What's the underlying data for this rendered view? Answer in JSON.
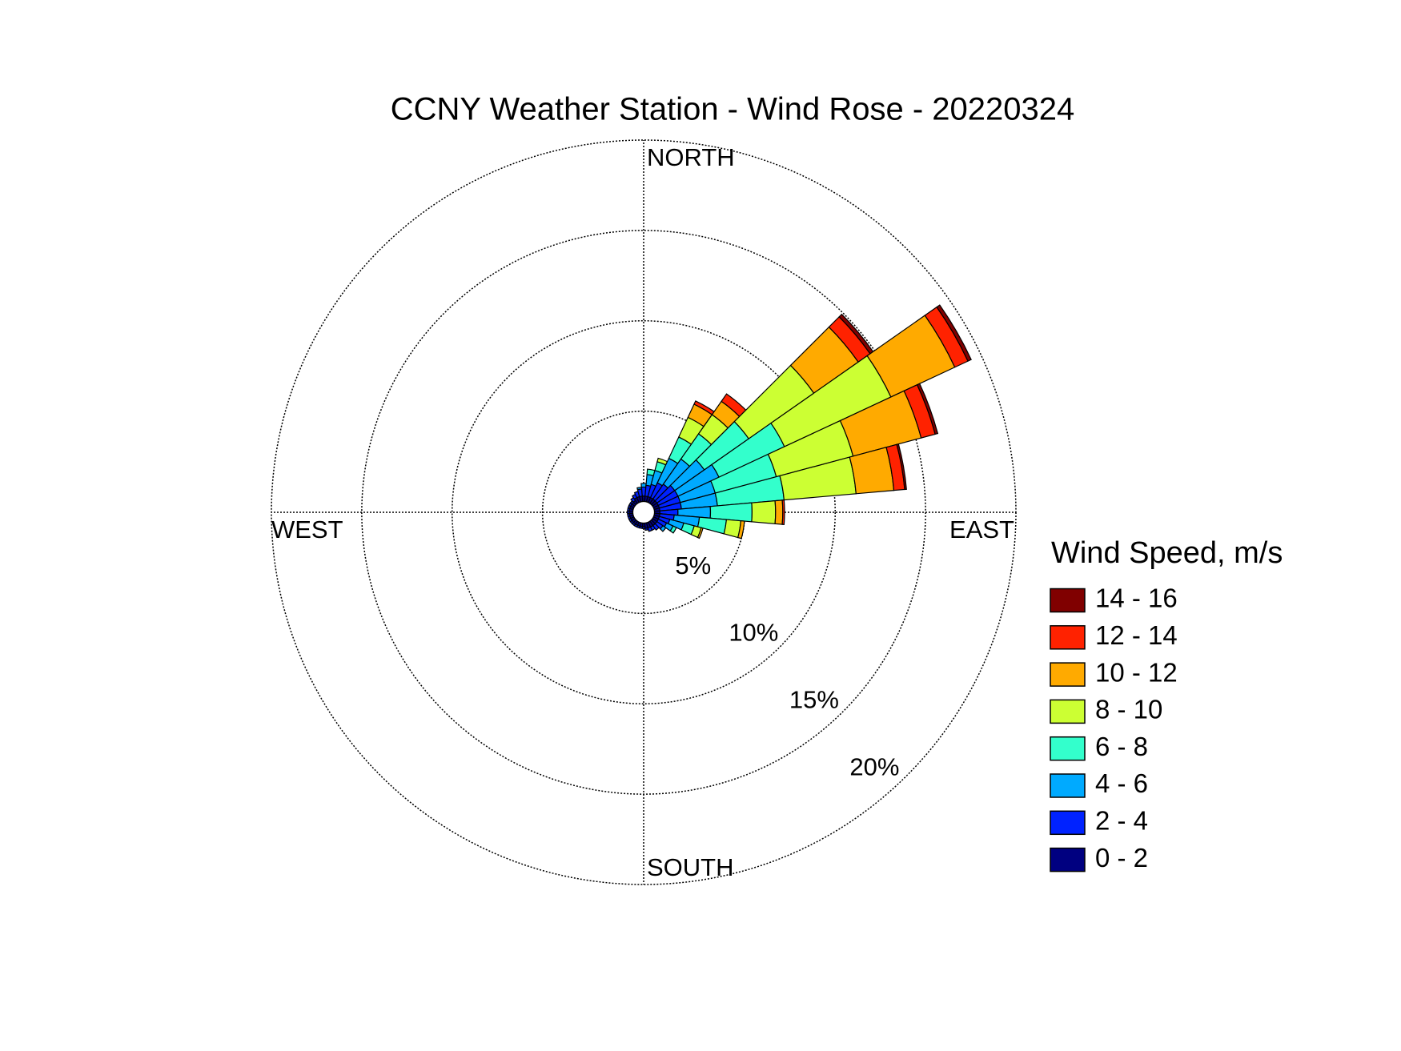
{
  "chart_data": {
    "type": "windrose",
    "title": "CCNY Weather Station - Wind Rose - 20220324",
    "direction_labels": {
      "north": "NORTH",
      "east": "EAST",
      "south": "SOUTH",
      "west": "WEST"
    },
    "x": [
      0,
      10,
      20,
      30,
      40,
      50,
      60,
      70,
      80,
      90,
      100,
      110,
      120,
      130,
      140,
      150,
      160,
      170,
      180,
      190,
      200,
      210,
      220,
      230,
      240,
      250,
      260,
      270,
      280,
      290,
      300,
      310,
      320,
      330,
      340,
      350
    ],
    "rlim": [
      0,
      20
    ],
    "rticks": [
      {
        "value": 5,
        "label": "5%"
      },
      {
        "value": 10,
        "label": "10%"
      },
      {
        "value": 15,
        "label": "15%"
      },
      {
        "value": 20,
        "label": "20%"
      }
    ],
    "grid": true,
    "legend_title": "Wind Speed, m/s",
    "legend_position": "right",
    "series": [
      {
        "name": "0 - 2",
        "color": "#000080",
        "values": [
          0.3,
          0.3,
          0.3,
          0.3,
          0.3,
          0.3,
          0.3,
          0.3,
          0.3,
          0.3,
          0.3,
          0.3,
          0.3,
          0.3,
          0.3,
          0.3,
          0.3,
          0.3,
          0.2,
          0.2,
          0.2,
          0.2,
          0.2,
          0.2,
          0.2,
          0.2,
          0.2,
          0.2,
          0.2,
          0.2,
          0.2,
          0.2,
          0.2,
          0.3,
          0.3,
          0.3
        ]
      },
      {
        "name": "2 - 4",
        "color": "#0022ff",
        "values": [
          0.5,
          0.6,
          0.7,
          0.9,
          1.0,
          1.2,
          1.2,
          1.2,
          1.2,
          1.0,
          0.8,
          0.6,
          0.5,
          0.4,
          0.3,
          0.2,
          0.2,
          0.1,
          0.1,
          0.1,
          0.1,
          0.1,
          0.1,
          0.1,
          0.1,
          0.1,
          0.1,
          0.1,
          0.1,
          0.1,
          0.1,
          0.1,
          0.2,
          0.2,
          0.3,
          0.4
        ]
      },
      {
        "name": "4 - 6",
        "color": "#00aaff",
        "values": [
          0.2,
          0.6,
          0.8,
          1.5,
          1.7,
          2.0,
          2.5,
          2.0,
          2.0,
          1.8,
          1.4,
          0.8,
          0.4,
          0.2,
          0,
          0,
          0,
          0,
          0,
          0,
          0,
          0,
          0,
          0,
          0,
          0,
          0,
          0,
          0,
          0,
          0,
          0,
          0,
          0,
          0,
          0.1
        ]
      },
      {
        "name": "6 - 8",
        "color": "#33ffcc",
        "values": [
          0,
          0.3,
          0.5,
          1.3,
          1.7,
          3.0,
          4.0,
          3.5,
          3.7,
          2.3,
          1.5,
          0.6,
          0.2,
          0,
          0,
          0,
          0,
          0,
          0,
          0,
          0,
          0,
          0,
          0,
          0,
          0,
          0,
          0,
          0,
          0,
          0,
          0,
          0,
          0,
          0,
          0
        ]
      },
      {
        "name": "8 - 10",
        "color": "#ccff33",
        "values": [
          0,
          0,
          0.2,
          1.2,
          1.3,
          4.4,
          6.5,
          4.4,
          4.0,
          1.3,
          0.8,
          0.4,
          0,
          0,
          0,
          0,
          0,
          0,
          0,
          0,
          0,
          0,
          0,
          0,
          0,
          0,
          0,
          0,
          0,
          0,
          0,
          0,
          0,
          0,
          0,
          0
        ]
      },
      {
        "name": "10 - 12",
        "color": "#ffaa00",
        "values": [
          0,
          0,
          0,
          0.8,
          0.9,
          3.0,
          3.9,
          3.9,
          2.1,
          0.4,
          0.2,
          0.1,
          0,
          0,
          0,
          0,
          0,
          0,
          0,
          0,
          0,
          0,
          0,
          0,
          0,
          0,
          0,
          0,
          0,
          0,
          0,
          0,
          0,
          0,
          0,
          0
        ]
      },
      {
        "name": "12 - 14",
        "color": "#ff2200",
        "values": [
          0,
          0,
          0,
          0.2,
          0.5,
          0.8,
          0.8,
          0.8,
          0.6,
          0.1,
          0,
          0,
          0,
          0,
          0,
          0,
          0,
          0,
          0,
          0,
          0,
          0,
          0,
          0,
          0,
          0,
          0,
          0,
          0,
          0,
          0,
          0,
          0,
          0,
          0,
          0
        ]
      },
      {
        "name": "14 - 16",
        "color": "#800000",
        "values": [
          0,
          0,
          0,
          0,
          0,
          0.2,
          0.2,
          0.15,
          0.1,
          0,
          0,
          0,
          0,
          0,
          0,
          0,
          0,
          0,
          0,
          0,
          0,
          0,
          0,
          0,
          0,
          0,
          0,
          0,
          0,
          0,
          0,
          0,
          0,
          0,
          0,
          0
        ]
      }
    ]
  }
}
